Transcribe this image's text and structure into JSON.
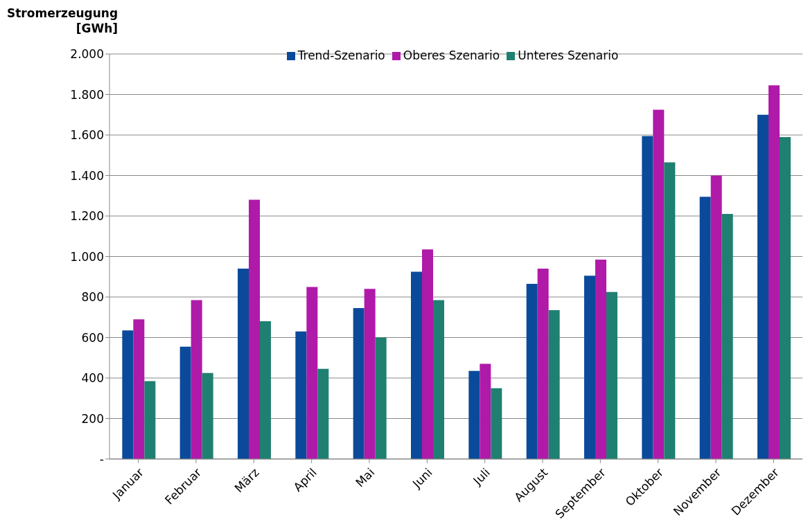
{
  "chart_data": {
    "type": "bar",
    "ylabel": "Stromerzeugung [GWh]",
    "categories": [
      "Januar",
      "Februar",
      "März",
      "April",
      "Mai",
      "Juni",
      "Juli",
      "August",
      "September",
      "Oktober",
      "November",
      "Dezember"
    ],
    "series": [
      {
        "name": "Trend-Szenario",
        "color": "#0b4a9b",
        "values": [
          635,
          555,
          940,
          630,
          745,
          925,
          435,
          865,
          905,
          1595,
          1295,
          1700
        ]
      },
      {
        "name": "Oberes Szenario",
        "color": "#b01aa8",
        "values": [
          690,
          785,
          1280,
          850,
          840,
          1035,
          470,
          940,
          985,
          1725,
          1400,
          1845
        ]
      },
      {
        "name": "Unteres Szenario",
        "color": "#1f8071",
        "values": [
          385,
          425,
          680,
          445,
          600,
          785,
          350,
          735,
          825,
          1465,
          1210,
          1590
        ]
      }
    ],
    "ylim": [
      0,
      2000
    ],
    "yticks": [
      {
        "value": 0,
        "label": "-"
      },
      {
        "value": 200,
        "label": "200"
      },
      {
        "value": 400,
        "label": "400"
      },
      {
        "value": 600,
        "label": "600"
      },
      {
        "value": 800,
        "label": "800"
      },
      {
        "value": 1000,
        "label": "1.000"
      },
      {
        "value": 1200,
        "label": "1.200"
      },
      {
        "value": 1400,
        "label": "1.400"
      },
      {
        "value": 1600,
        "label": "1.600"
      },
      {
        "value": 1800,
        "label": "1.800"
      },
      {
        "value": 2000,
        "label": "2.000"
      }
    ],
    "grid": "y",
    "legend": "top"
  }
}
